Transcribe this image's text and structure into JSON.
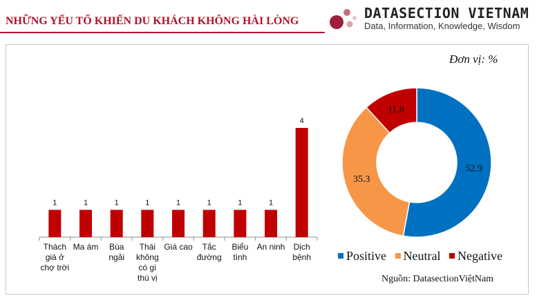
{
  "header": {
    "title": "NHỮNG YẾU TỐ KHIẾN DU KHÁCH KHÔNG HÀI LÒNG",
    "logo_name": "DATASECTION VIETNAM",
    "logo_tagline": "Data, Information, Knowledge, Wisdom"
  },
  "unit_label": "Đơn vị:  %",
  "source_label": "Nguồn:  DatasectionViệtNam",
  "colors": {
    "brand": "#b0132a",
    "bar": "#c00000",
    "positive": "#0070c0",
    "neutral": "#f79646",
    "negative": "#c00000"
  },
  "chart_data": [
    {
      "type": "bar",
      "categories": [
        [
          "Thách",
          "giá ở",
          "chợ trời"
        ],
        [
          "Ma ám"
        ],
        [
          "Bùa",
          "ngải"
        ],
        [
          "Thái",
          "không",
          "có gì",
          "thú vị"
        ],
        [
          "Giá cao"
        ],
        [
          "Tắc",
          "đường"
        ],
        [
          "Biểu",
          "tình"
        ],
        [
          "An ninh"
        ],
        [
          "Dịch",
          "bệnh"
        ]
      ],
      "values": [
        1,
        1,
        1,
        1,
        1,
        1,
        1,
        1,
        4
      ],
      "ylim": [
        0,
        4
      ]
    },
    {
      "type": "pie",
      "labels": [
        "Positive",
        "Neutral",
        "Negative"
      ],
      "values": [
        52.9,
        35.3,
        11.8
      ],
      "value_labels": [
        "52.9",
        "35.3",
        "11.8"
      ]
    }
  ]
}
